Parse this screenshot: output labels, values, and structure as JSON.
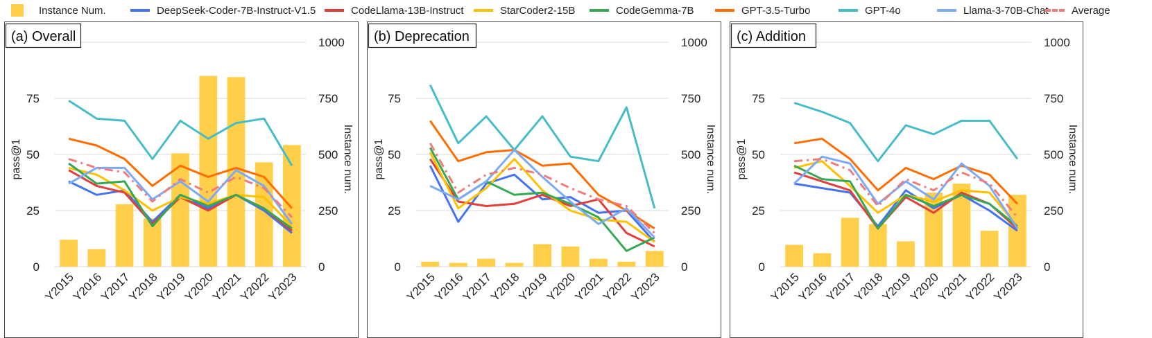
{
  "legend": [
    {
      "label": "Instance Num.",
      "kind": "bar",
      "color": "#FFCF4A"
    },
    {
      "label": "DeepSeek-Coder-7B-Instruct-V1.5",
      "kind": "line",
      "color": "#4472F0"
    },
    {
      "label": "CodeLlama-13B-Instruct",
      "kind": "line",
      "color": "#E23E3A"
    },
    {
      "label": "StarCoder2-15B",
      "kind": "line",
      "color": "#FFC000"
    },
    {
      "label": "CodeGemma-7B",
      "kind": "line",
      "color": "#34A853"
    },
    {
      "label": "GPT-3.5-Turbo",
      "kind": "line",
      "color": "#FF6D01"
    },
    {
      "label": "GPT-4o",
      "kind": "line",
      "color": "#46BDC6"
    },
    {
      "label": "Llama-3-70B-Chat",
      "kind": "line",
      "color": "#7BAAF7"
    },
    {
      "label": "Average",
      "kind": "dash",
      "color": "#F07B7B"
    }
  ],
  "chart_data": [
    {
      "type": "bar+line",
      "title": "(a) Overall",
      "categories": [
        "Y2015",
        "Y2016",
        "Y2017",
        "Y2018",
        "Y2019",
        "Y2020",
        "Y2021",
        "Y2022",
        "Y2023"
      ],
      "ylabel": "pass@1",
      "y2label": "Instance num.",
      "ylim": [
        0,
        100
      ],
      "y2lim": [
        0,
        1000
      ],
      "yticks": [
        "0",
        "25",
        "50",
        "75"
      ],
      "y2ticks": [
        "0",
        "250",
        "500",
        "750",
        "1000"
      ],
      "bars": {
        "name": "Instance Num.",
        "values": [
          120,
          78,
          278,
          215,
          505,
          850,
          845,
          465,
          542
        ]
      },
      "series": [
        {
          "name": "DeepSeek-Coder-7B-Instruct-V1.5",
          "values": [
            38,
            32,
            34,
            20,
            32,
            26,
            32,
            25,
            15
          ]
        },
        {
          "name": "CodeLlama-13B-Instruct",
          "values": [
            43,
            36,
            33,
            19,
            31,
            25,
            32,
            26,
            16
          ]
        },
        {
          "name": "StarCoder2-15B",
          "values": [
            44,
            41,
            34,
            25,
            31,
            28,
            32,
            31,
            18
          ]
        },
        {
          "name": "CodeGemma-7B",
          "values": [
            46,
            37,
            38,
            18,
            32,
            27,
            32,
            26,
            17
          ]
        },
        {
          "name": "GPT-3.5-Turbo",
          "values": [
            57,
            54,
            48,
            36,
            45,
            40,
            44,
            40,
            26
          ]
        },
        {
          "name": "GPT-4o",
          "values": [
            74,
            66,
            65,
            48,
            65,
            57,
            64,
            66,
            45
          ]
        },
        {
          "name": "Llama-3-70B-Chat",
          "values": [
            37,
            44,
            44,
            30,
            38,
            29,
            43,
            36,
            19
          ]
        },
        {
          "name": "Average",
          "values": [
            48,
            44,
            42,
            29,
            39,
            33,
            40,
            35,
            22
          ]
        }
      ]
    },
    {
      "type": "bar+line",
      "title": "(b) Deprecation",
      "categories": [
        "Y2015",
        "Y2016",
        "Y2017",
        "Y2018",
        "Y2019",
        "Y2020",
        "Y2021",
        "Y2022",
        "Y2023"
      ],
      "ylabel": "pass@1",
      "y2label": "Instance num.",
      "ylim": [
        0,
        100
      ],
      "y2lim": [
        0,
        1000
      ],
      "yticks": [
        "0",
        "25",
        "50",
        "75"
      ],
      "y2ticks": [
        "0",
        "250",
        "500",
        "750",
        "1000"
      ],
      "bars": {
        "name": "Instance Num.",
        "values": [
          22,
          17,
          35,
          17,
          100,
          90,
          35,
          22,
          70
        ]
      },
      "series": [
        {
          "name": "DeepSeek-Coder-7B-Instruct-V1.5",
          "values": [
            45,
            20,
            37,
            41,
            30,
            31,
            24,
            25,
            11
          ]
        },
        {
          "name": "CodeLlama-13B-Instruct",
          "values": [
            48,
            29,
            27,
            28,
            32,
            27,
            30,
            15,
            9
          ]
        },
        {
          "name": "StarCoder2-15B",
          "values": [
            51,
            26,
            35,
            48,
            34,
            25,
            21,
            20,
            11
          ]
        },
        {
          "name": "CodeGemma-7B",
          "values": [
            53,
            30,
            38,
            32,
            33,
            28,
            22,
            7,
            13
          ]
        },
        {
          "name": "GPT-3.5-Turbo",
          "values": [
            65,
            47,
            51,
            52,
            45,
            46,
            32,
            25,
            17
          ]
        },
        {
          "name": "GPT-4o",
          "values": [
            81,
            55,
            67,
            52,
            67,
            49,
            47,
            71,
            26
          ]
        },
        {
          "name": "Llama-3-70B-Chat",
          "values": [
            36,
            30,
            38,
            52,
            40,
            29,
            19,
            26,
            13
          ]
        },
        {
          "name": "Average",
          "values": [
            55,
            33,
            41,
            44,
            41,
            35,
            30,
            27,
            15
          ]
        }
      ]
    },
    {
      "type": "bar+line",
      "title": "(c) Addition",
      "categories": [
        "Y2015",
        "Y2016",
        "Y2017",
        "Y2018",
        "Y2019",
        "Y2020",
        "Y2021",
        "Y2022",
        "Y2023"
      ],
      "ylabel": "pass@1",
      "y2label": "Instance num.",
      "ylim": [
        0,
        100
      ],
      "y2lim": [
        0,
        1000
      ],
      "yticks": [
        "0",
        "25",
        "50",
        "75"
      ],
      "y2ticks": [
        "0",
        "250",
        "500",
        "750",
        "1000"
      ],
      "bars": {
        "name": "Instance Num.",
        "values": [
          97,
          60,
          218,
          190,
          113,
          330,
          370,
          160,
          320
        ]
      },
      "series": [
        {
          "name": "DeepSeek-Coder-7B-Instruct-V1.5",
          "values": [
            37,
            35,
            33,
            18,
            34,
            26,
            32,
            25,
            16
          ]
        },
        {
          "name": "CodeLlama-13B-Instruct",
          "values": [
            42,
            38,
            34,
            17,
            31,
            24,
            33,
            28,
            17
          ]
        },
        {
          "name": "StarCoder2-15B",
          "values": [
            44,
            47,
            36,
            24,
            32,
            29,
            34,
            33,
            18
          ]
        },
        {
          "name": "CodeGemma-7B",
          "values": [
            45,
            39,
            38,
            17,
            32,
            27,
            32,
            28,
            18
          ]
        },
        {
          "name": "GPT-3.5-Turbo",
          "values": [
            55,
            57,
            48,
            34,
            44,
            39,
            45,
            41,
            28
          ]
        },
        {
          "name": "GPT-4o",
          "values": [
            73,
            69,
            64,
            47,
            63,
            59,
            65,
            65,
            48
          ]
        },
        {
          "name": "Llama-3-70B-Chat",
          "values": [
            37,
            49,
            46,
            28,
            38,
            30,
            46,
            36,
            17
          ]
        },
        {
          "name": "Average",
          "values": [
            47,
            48,
            43,
            27,
            39,
            34,
            42,
            37,
            22
          ]
        }
      ]
    }
  ]
}
